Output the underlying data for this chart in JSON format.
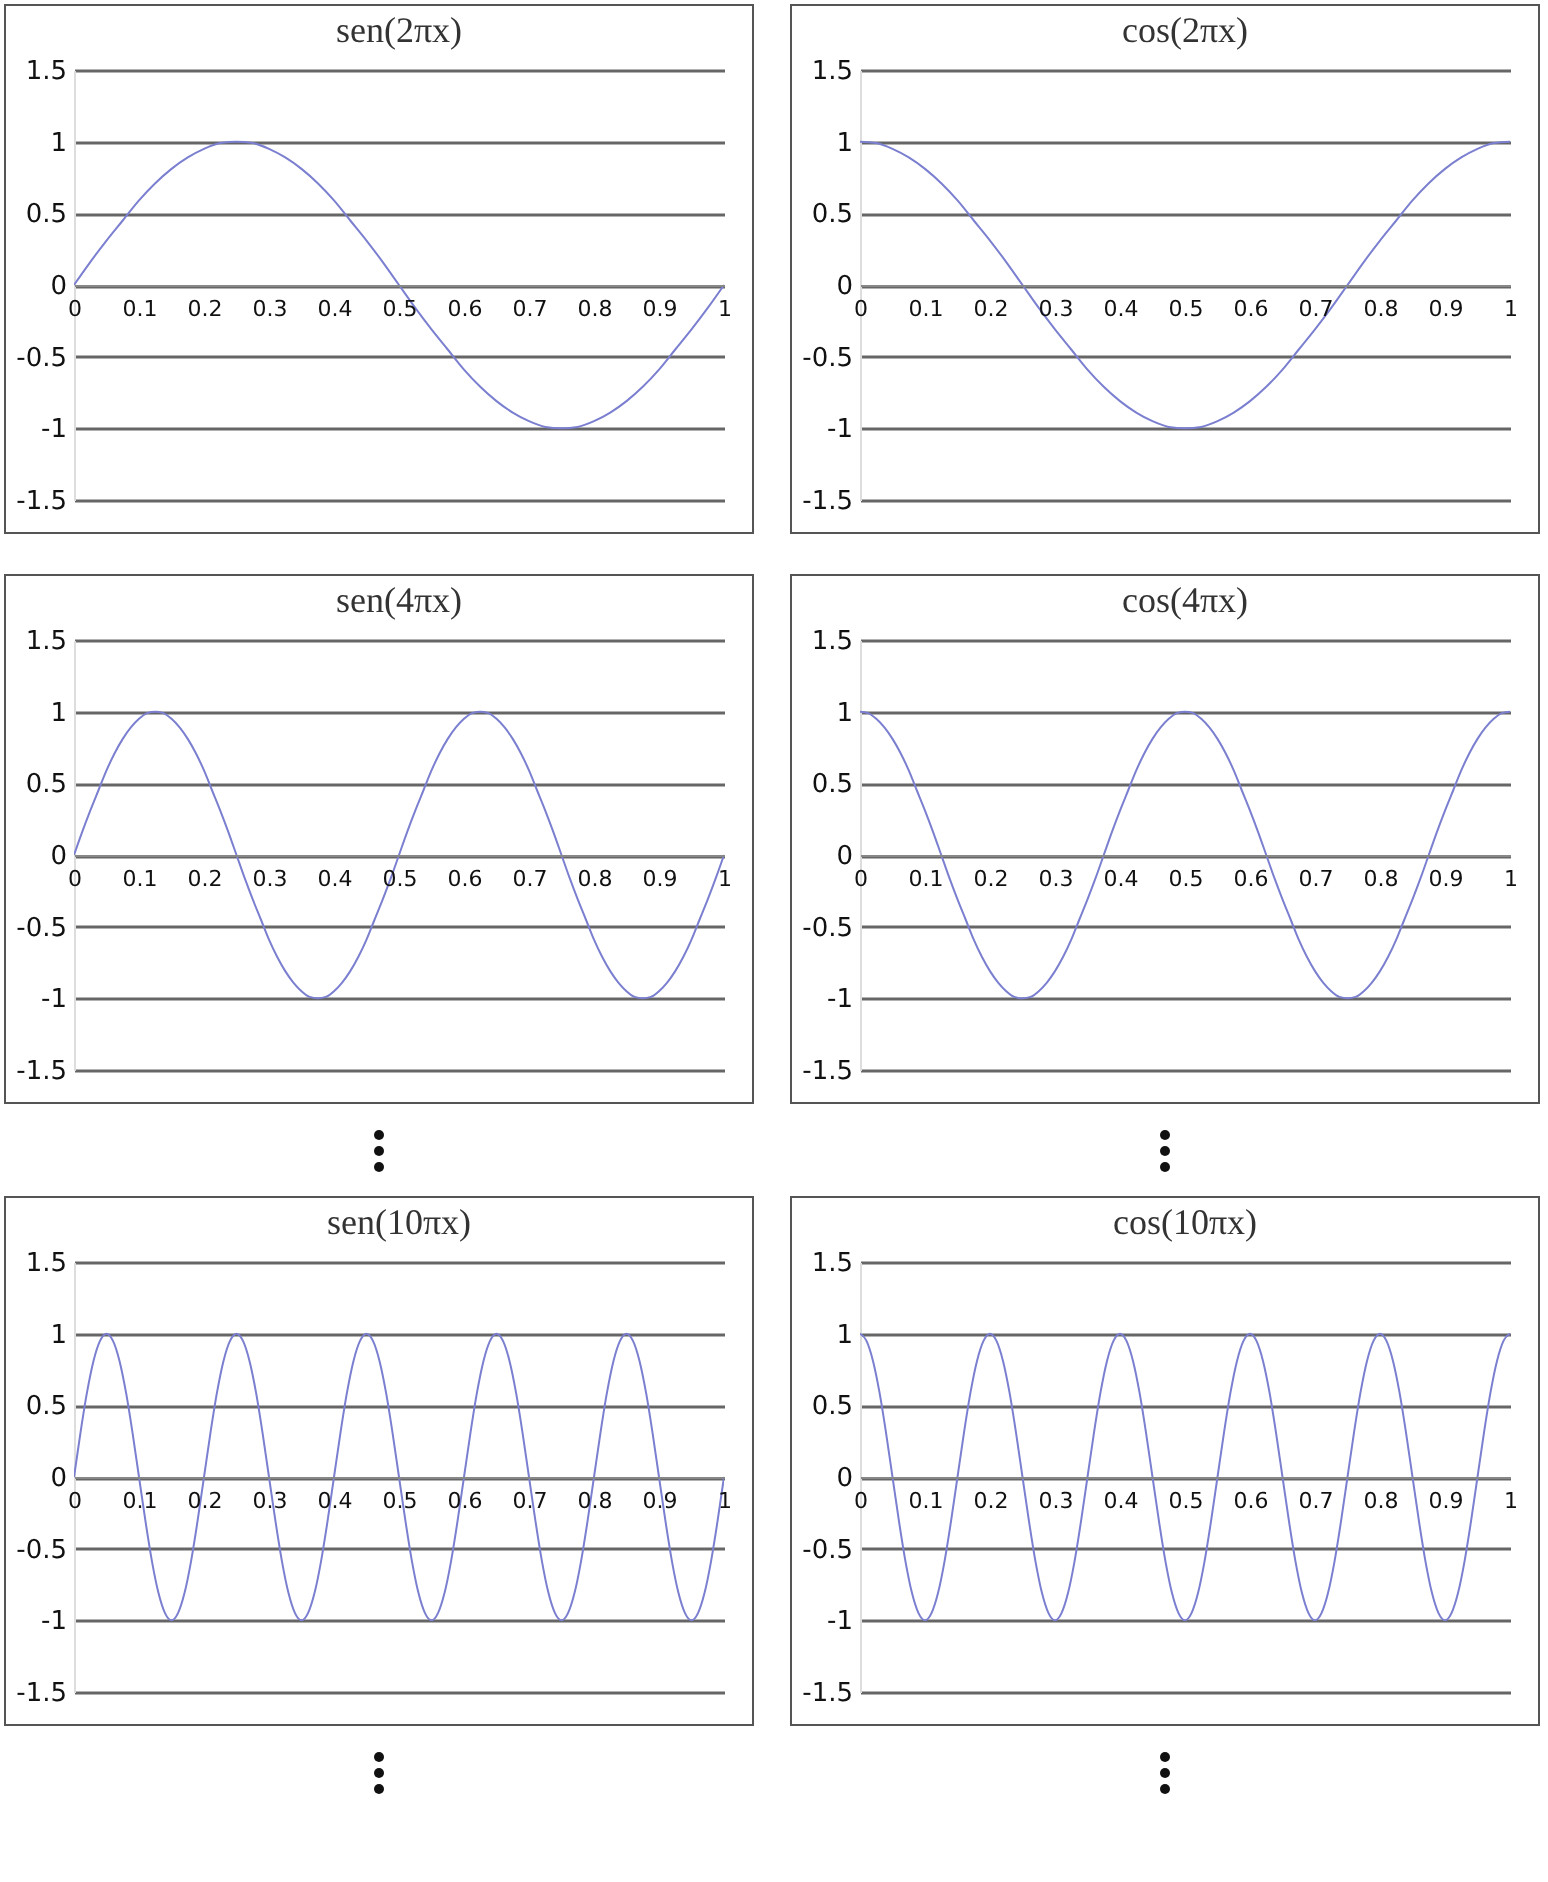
{
  "chart_data": [
    {
      "type": "line",
      "title": "sen(2πx)",
      "x": [
        0,
        0.025,
        0.05,
        0.075,
        0.1,
        0.125,
        0.15,
        0.175,
        0.2,
        0.225,
        0.25,
        0.275,
        0.3,
        0.325,
        0.35,
        0.375,
        0.4,
        0.425,
        0.45,
        0.475,
        0.5,
        0.525,
        0.55,
        0.575,
        0.6,
        0.625,
        0.65,
        0.675,
        0.7,
        0.725,
        0.75,
        0.775,
        0.8,
        0.825,
        0.85,
        0.875,
        0.9,
        0.925,
        0.95,
        0.975,
        1
      ],
      "series": [
        {
          "color": "#7b7fd0",
          "values": [
            0,
            0.16,
            0.31,
            0.45,
            0.59,
            0.71,
            0.81,
            0.89,
            0.95,
            0.99,
            1,
            0.99,
            0.95,
            0.89,
            0.81,
            0.71,
            0.59,
            0.45,
            0.31,
            0.16,
            0,
            -0.16,
            -0.31,
            -0.45,
            -0.59,
            -0.71,
            -0.81,
            -0.89,
            -0.95,
            -0.99,
            -1,
            -0.99,
            -0.95,
            -0.89,
            -0.81,
            -0.71,
            -0.59,
            -0.45,
            -0.31,
            -0.16,
            0
          ]
        }
      ],
      "xlim": [
        0,
        1
      ],
      "ylim": [
        -1.5,
        1.5
      ],
      "xticks": [
        0,
        0.1,
        0.2,
        0.3,
        0.4,
        0.5,
        0.6,
        0.7,
        0.8,
        0.9,
        1
      ],
      "yticks": [
        -1.5,
        -1,
        -0.5,
        0,
        0.5,
        1,
        1.5
      ],
      "grid": "y"
    },
    {
      "type": "line",
      "title": "cos(2πx)",
      "x": [
        0,
        0.025,
        0.05,
        0.075,
        0.1,
        0.125,
        0.15,
        0.175,
        0.2,
        0.225,
        0.25,
        0.275,
        0.3,
        0.325,
        0.35,
        0.375,
        0.4,
        0.425,
        0.45,
        0.475,
        0.5,
        0.525,
        0.55,
        0.575,
        0.6,
        0.625,
        0.65,
        0.675,
        0.7,
        0.725,
        0.75,
        0.775,
        0.8,
        0.825,
        0.85,
        0.875,
        0.9,
        0.925,
        0.95,
        0.975,
        1
      ],
      "series": [
        {
          "color": "#7b7fd0",
          "values": [
            1,
            0.99,
            0.95,
            0.89,
            0.81,
            0.71,
            0.59,
            0.45,
            0.31,
            0.16,
            0,
            -0.16,
            -0.31,
            -0.45,
            -0.59,
            -0.71,
            -0.81,
            -0.89,
            -0.95,
            -0.99,
            -1,
            -0.99,
            -0.95,
            -0.89,
            -0.81,
            -0.71,
            -0.59,
            -0.45,
            -0.31,
            -0.16,
            0,
            0.16,
            0.31,
            0.45,
            0.59,
            0.71,
            0.81,
            0.89,
            0.95,
            0.99,
            1
          ]
        }
      ],
      "xlim": [
        0,
        1
      ],
      "ylim": [
        -1.5,
        1.5
      ],
      "xticks": [
        0,
        0.1,
        0.2,
        0.3,
        0.4,
        0.5,
        0.6,
        0.7,
        0.8,
        0.9,
        1
      ],
      "yticks": [
        -1.5,
        -1,
        -0.5,
        0,
        0.5,
        1,
        1.5
      ],
      "grid": "y"
    },
    {
      "type": "line",
      "title": "sen(4πx)",
      "x": [
        0,
        0.0125,
        0.025,
        0.0375,
        0.05,
        0.0625,
        0.075,
        0.0875,
        0.1,
        0.1125,
        0.125,
        0.1375,
        0.15,
        0.1625,
        0.175,
        0.1875,
        0.2,
        0.2125,
        0.225,
        0.2375,
        0.25,
        0.2625,
        0.275,
        0.2875,
        0.3,
        0.3125,
        0.325,
        0.3375,
        0.35,
        0.3625,
        0.375,
        0.3875,
        0.4,
        0.4125,
        0.425,
        0.4375,
        0.45,
        0.4625,
        0.475,
        0.4875,
        0.5,
        0.5125,
        0.525,
        0.5375,
        0.55,
        0.5625,
        0.575,
        0.5875,
        0.6,
        0.6125,
        0.625,
        0.6375,
        0.65,
        0.6625,
        0.675,
        0.6875,
        0.7,
        0.7125,
        0.725,
        0.7375,
        0.75,
        0.7625,
        0.775,
        0.7875,
        0.8,
        0.8125,
        0.825,
        0.8375,
        0.85,
        0.8625,
        0.875,
        0.8875,
        0.9,
        0.9125,
        0.925,
        0.9375,
        0.95,
        0.9625,
        0.975,
        0.9875,
        1
      ],
      "series": [
        {
          "color": "#7b7fd0",
          "values": [
            0,
            0.16,
            0.31,
            0.45,
            0.59,
            0.71,
            0.81,
            0.89,
            0.95,
            0.99,
            1,
            0.99,
            0.95,
            0.89,
            0.81,
            0.71,
            0.59,
            0.45,
            0.31,
            0.16,
            0,
            -0.16,
            -0.31,
            -0.45,
            -0.59,
            -0.71,
            -0.81,
            -0.89,
            -0.95,
            -0.99,
            -1,
            -0.99,
            -0.95,
            -0.89,
            -0.81,
            -0.71,
            -0.59,
            -0.45,
            -0.31,
            -0.16,
            0,
            0.16,
            0.31,
            0.45,
            0.59,
            0.71,
            0.81,
            0.89,
            0.95,
            0.99,
            1,
            0.99,
            0.95,
            0.89,
            0.81,
            0.71,
            0.59,
            0.45,
            0.31,
            0.16,
            0,
            -0.16,
            -0.31,
            -0.45,
            -0.59,
            -0.71,
            -0.81,
            -0.89,
            -0.95,
            -0.99,
            -1,
            -0.99,
            -0.95,
            -0.89,
            -0.81,
            -0.71,
            -0.59,
            -0.45,
            -0.31,
            -0.16,
            0
          ]
        }
      ],
      "xlim": [
        0,
        1
      ],
      "ylim": [
        -1.5,
        1.5
      ],
      "xticks": [
        0,
        0.1,
        0.2,
        0.3,
        0.4,
        0.5,
        0.6,
        0.7,
        0.8,
        0.9,
        1
      ],
      "yticks": [
        -1.5,
        -1,
        -0.5,
        0,
        0.5,
        1,
        1.5
      ],
      "grid": "y"
    },
    {
      "type": "line",
      "title": "cos(4πx)",
      "x": [
        0,
        0.0125,
        0.025,
        0.0375,
        0.05,
        0.0625,
        0.075,
        0.0875,
        0.1,
        0.1125,
        0.125,
        0.1375,
        0.15,
        0.1625,
        0.175,
        0.1875,
        0.2,
        0.2125,
        0.225,
        0.2375,
        0.25,
        0.2625,
        0.275,
        0.2875,
        0.3,
        0.3125,
        0.325,
        0.3375,
        0.35,
        0.3625,
        0.375,
        0.3875,
        0.4,
        0.4125,
        0.425,
        0.4375,
        0.45,
        0.4625,
        0.475,
        0.4875,
        0.5,
        0.5125,
        0.525,
        0.5375,
        0.55,
        0.5625,
        0.575,
        0.5875,
        0.6,
        0.6125,
        0.625,
        0.6375,
        0.65,
        0.6625,
        0.675,
        0.6875,
        0.7,
        0.7125,
        0.725,
        0.7375,
        0.75,
        0.7625,
        0.775,
        0.7875,
        0.8,
        0.8125,
        0.825,
        0.8375,
        0.85,
        0.8625,
        0.875,
        0.8875,
        0.9,
        0.9125,
        0.925,
        0.9375,
        0.95,
        0.9625,
        0.975,
        0.9875,
        1
      ],
      "series": [
        {
          "color": "#7b7fd0",
          "values": [
            1,
            0.99,
            0.95,
            0.89,
            0.81,
            0.71,
            0.59,
            0.45,
            0.31,
            0.16,
            0,
            -0.16,
            -0.31,
            -0.45,
            -0.59,
            -0.71,
            -0.81,
            -0.89,
            -0.95,
            -0.99,
            -1,
            -0.99,
            -0.95,
            -0.89,
            -0.81,
            -0.71,
            -0.59,
            -0.45,
            -0.31,
            -0.16,
            0,
            0.16,
            0.31,
            0.45,
            0.59,
            0.71,
            0.81,
            0.89,
            0.95,
            0.99,
            1,
            0.99,
            0.95,
            0.89,
            0.81,
            0.71,
            0.59,
            0.45,
            0.31,
            0.16,
            0,
            -0.16,
            -0.31,
            -0.45,
            -0.59,
            -0.71,
            -0.81,
            -0.89,
            -0.95,
            -0.99,
            -1,
            -0.99,
            -0.95,
            -0.89,
            -0.81,
            -0.71,
            -0.59,
            -0.45,
            -0.31,
            -0.16,
            0,
            0.16,
            0.31,
            0.45,
            0.59,
            0.71,
            0.81,
            0.89,
            0.95,
            0.99,
            1
          ]
        }
      ],
      "xlim": [
        0,
        1
      ],
      "ylim": [
        -1.5,
        1.5
      ],
      "xticks": [
        0,
        0.1,
        0.2,
        0.3,
        0.4,
        0.5,
        0.6,
        0.7,
        0.8,
        0.9,
        1
      ],
      "yticks": [
        -1.5,
        -1,
        -0.5,
        0,
        0.5,
        1,
        1.5
      ],
      "grid": "y"
    },
    {
      "type": "line",
      "title": "sen(10πx)",
      "x": [
        0,
        0.01,
        0.02,
        0.03,
        0.04,
        0.05,
        0.06,
        0.07,
        0.08,
        0.09,
        0.1,
        0.11,
        0.12,
        0.13,
        0.14,
        0.15,
        0.16,
        0.17,
        0.18,
        0.19,
        0.2,
        0.21,
        0.22,
        0.23,
        0.24,
        0.25,
        0.26,
        0.27,
        0.28,
        0.29,
        0.3,
        0.31,
        0.32,
        0.33,
        0.34,
        0.35,
        0.36,
        0.37,
        0.38,
        0.39,
        0.4,
        0.41,
        0.42,
        0.43,
        0.44,
        0.45,
        0.46,
        0.47,
        0.48,
        0.49,
        0.5,
        0.51,
        0.52,
        0.53,
        0.54,
        0.55,
        0.56,
        0.57,
        0.58,
        0.59,
        0.6,
        0.61,
        0.62,
        0.63,
        0.64,
        0.65,
        0.66,
        0.67,
        0.68,
        0.69,
        0.7,
        0.71,
        0.72,
        0.73,
        0.74,
        0.75,
        0.76,
        0.77,
        0.78,
        0.79,
        0.8,
        0.81,
        0.82,
        0.83,
        0.84,
        0.85,
        0.86,
        0.87,
        0.88,
        0.89,
        0.9,
        0.91,
        0.92,
        0.93,
        0.94,
        0.95,
        0.96,
        0.97,
        0.98,
        0.99,
        1
      ],
      "series": [
        {
          "color": "#7b7fd0",
          "values": [
            0,
            0.31,
            0.59,
            0.81,
            0.95,
            1,
            0.95,
            0.81,
            0.59,
            0.31,
            0,
            -0.31,
            -0.59,
            -0.81,
            -0.95,
            -1,
            -0.95,
            -0.81,
            -0.59,
            -0.31,
            0,
            0.31,
            0.59,
            0.81,
            0.95,
            1,
            0.95,
            0.81,
            0.59,
            0.31,
            0,
            -0.31,
            -0.59,
            -0.81,
            -0.95,
            -1,
            -0.95,
            -0.81,
            -0.59,
            -0.31,
            0,
            0.31,
            0.59,
            0.81,
            0.95,
            1,
            0.95,
            0.81,
            0.59,
            0.31,
            0,
            -0.31,
            -0.59,
            -0.81,
            -0.95,
            -1,
            -0.95,
            -0.81,
            -0.59,
            -0.31,
            0,
            0.31,
            0.59,
            0.81,
            0.95,
            1,
            0.95,
            0.81,
            0.59,
            0.31,
            0,
            -0.31,
            -0.59,
            -0.81,
            -0.95,
            -1,
            -0.95,
            -0.81,
            -0.59,
            -0.31,
            0,
            0.31,
            0.59,
            0.81,
            0.95,
            1,
            0.95,
            0.81,
            0.59,
            0.31,
            0,
            -0.31,
            -0.59,
            -0.81,
            -0.95,
            -1,
            -0.95,
            -0.81,
            -0.59,
            -0.31,
            0
          ]
        }
      ],
      "xlim": [
        0,
        1
      ],
      "ylim": [
        -1.5,
        1.5
      ],
      "xticks": [
        0,
        0.1,
        0.2,
        0.3,
        0.4,
        0.5,
        0.6,
        0.7,
        0.8,
        0.9,
        1
      ],
      "yticks": [
        -1.5,
        -1,
        -0.5,
        0,
        0.5,
        1,
        1.5
      ],
      "grid": "y"
    },
    {
      "type": "line",
      "title": "cos(10πx)",
      "x": [
        0,
        0.01,
        0.02,
        0.03,
        0.04,
        0.05,
        0.06,
        0.07,
        0.08,
        0.09,
        0.1,
        0.11,
        0.12,
        0.13,
        0.14,
        0.15,
        0.16,
        0.17,
        0.18,
        0.19,
        0.2,
        0.21,
        0.22,
        0.23,
        0.24,
        0.25,
        0.26,
        0.27,
        0.28,
        0.29,
        0.3,
        0.31,
        0.32,
        0.33,
        0.34,
        0.35,
        0.36,
        0.37,
        0.38,
        0.39,
        0.4,
        0.41,
        0.42,
        0.43,
        0.44,
        0.45,
        0.46,
        0.47,
        0.48,
        0.49,
        0.5,
        0.51,
        0.52,
        0.53,
        0.54,
        0.55,
        0.56,
        0.57,
        0.58,
        0.59,
        0.6,
        0.61,
        0.62,
        0.63,
        0.64,
        0.65,
        0.66,
        0.67,
        0.68,
        0.69,
        0.7,
        0.71,
        0.72,
        0.73,
        0.74,
        0.75,
        0.76,
        0.77,
        0.78,
        0.79,
        0.8,
        0.81,
        0.82,
        0.83,
        0.84,
        0.85,
        0.86,
        0.87,
        0.88,
        0.89,
        0.9,
        0.91,
        0.92,
        0.93,
        0.94,
        0.95,
        0.96,
        0.97,
        0.98,
        0.99,
        1
      ],
      "series": [
        {
          "color": "#7b7fd0",
          "values": [
            1,
            0.95,
            0.81,
            0.59,
            0.31,
            0,
            -0.31,
            -0.59,
            -0.81,
            -0.95,
            -1,
            -0.95,
            -0.81,
            -0.59,
            -0.31,
            0,
            0.31,
            0.59,
            0.81,
            0.95,
            1,
            0.95,
            0.81,
            0.59,
            0.31,
            0,
            -0.31,
            -0.59,
            -0.81,
            -0.95,
            -1,
            -0.95,
            -0.81,
            -0.59,
            -0.31,
            0,
            0.31,
            0.59,
            0.81,
            0.95,
            1,
            0.95,
            0.81,
            0.59,
            0.31,
            0,
            -0.31,
            -0.59,
            -0.81,
            -0.95,
            -1,
            -0.95,
            -0.81,
            -0.59,
            -0.31,
            0,
            0.31,
            0.59,
            0.81,
            0.95,
            1,
            0.95,
            0.81,
            0.59,
            0.31,
            0,
            -0.31,
            -0.59,
            -0.81,
            -0.95,
            -1,
            -0.95,
            -0.81,
            -0.59,
            -0.31,
            0,
            0.31,
            0.59,
            0.81,
            0.95,
            1,
            0.95,
            0.81,
            0.59,
            0.31,
            0,
            -0.31,
            -0.59,
            -0.81,
            -0.95,
            -1,
            -0.95,
            -0.81,
            -0.59,
            -0.31,
            0,
            0.31,
            0.59,
            0.81,
            0.95,
            1
          ]
        }
      ],
      "xlim": [
        0,
        1
      ],
      "ylim": [
        -1.5,
        1.5
      ],
      "xticks": [
        0,
        0.1,
        0.2,
        0.3,
        0.4,
        0.5,
        0.6,
        0.7,
        0.8,
        0.9,
        1
      ],
      "yticks": [
        -1.5,
        -1,
        -0.5,
        0,
        0.5,
        1,
        1.5
      ],
      "grid": "y"
    }
  ]
}
